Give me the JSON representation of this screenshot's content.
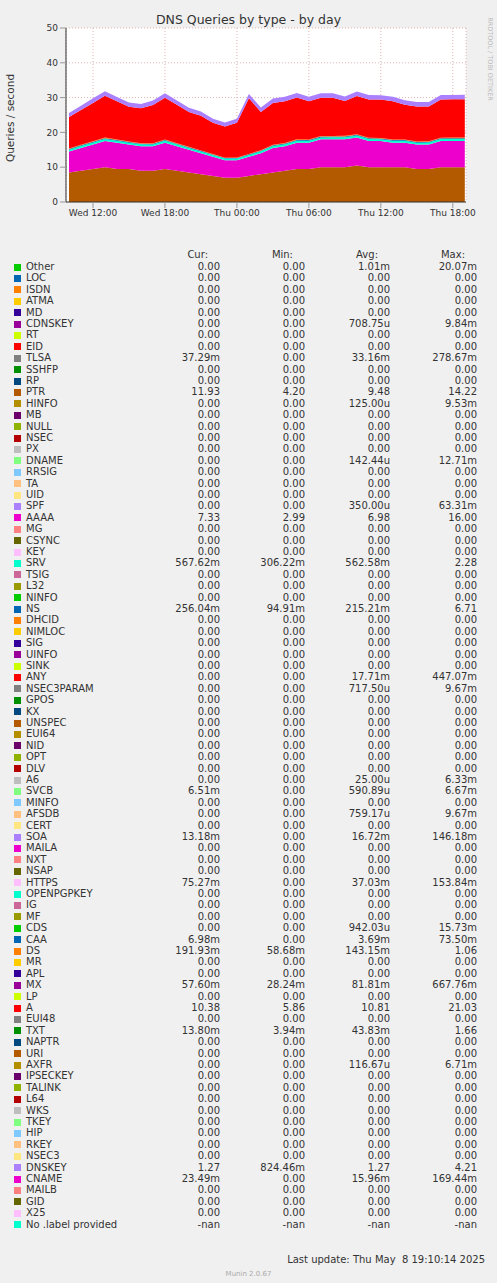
{
  "chart_data": {
    "type": "area",
    "title": "DNS Queries by type - by day",
    "y_label": "Queries / second",
    "stacked": true,
    "grid": true,
    "x": [
      10,
      11,
      12,
      13,
      14,
      15,
      16,
      17,
      18,
      19,
      20,
      21,
      22,
      23,
      24,
      25,
      26,
      27,
      28,
      29,
      30,
      31,
      32,
      33,
      34,
      35,
      36,
      37,
      38,
      39,
      40,
      41,
      42,
      43
    ],
    "xlim": [
      9.75,
      43.1
    ],
    "xticks": [
      {
        "value": 12,
        "label": "Wed 12:00"
      },
      {
        "value": 18,
        "label": "Wed 18:00"
      },
      {
        "value": 24,
        "label": "Thu 00:00"
      },
      {
        "value": 30,
        "label": "Thu 06:00"
      },
      {
        "value": 36,
        "label": "Thu 12:00"
      },
      {
        "value": 42,
        "label": "Thu 18:00"
      }
    ],
    "ylim": [
      0,
      50
    ],
    "yticks": [
      0,
      10,
      20,
      30,
      40,
      50
    ],
    "series": [
      {
        "name": "PTR",
        "color": "#B35A00",
        "values": [
          8.5,
          9,
          9.5,
          10,
          9.5,
          9.5,
          9,
          9,
          9.5,
          9,
          8.5,
          8,
          7.5,
          7,
          7,
          7.5,
          8,
          8.5,
          9,
          9.5,
          9.5,
          10,
          10,
          10,
          10.5,
          10,
          10,
          10,
          10,
          9.5,
          9.5,
          10,
          10,
          10
        ]
      },
      {
        "name": "AAAA",
        "color": "#EE00CC",
        "values": [
          6,
          6.5,
          7,
          7.5,
          7.5,
          7,
          7,
          7,
          7.5,
          7,
          6.5,
          6,
          5.5,
          5,
          5,
          5.5,
          6,
          7,
          7,
          7.5,
          7.5,
          8,
          8,
          8,
          8,
          7.5,
          7.5,
          7,
          7,
          7,
          7,
          7.5,
          7.5,
          7.5
        ]
      },
      {
        "name": "SRV",
        "color": "#00FFCC",
        "values": [
          0.55,
          0.56,
          0.58,
          0.6,
          0.57,
          0.55,
          0.56,
          0.55,
          0.57,
          0.56,
          0.54,
          0.52,
          0.5,
          0.48,
          0.5,
          0.52,
          0.55,
          0.57,
          0.58,
          0.6,
          0.58,
          0.57,
          0.58,
          0.6,
          0.58,
          0.57,
          0.56,
          0.57,
          0.58,
          0.56,
          0.57,
          0.58,
          0.57,
          0.57
        ]
      },
      {
        "name": "NS",
        "color": "#0066B3",
        "values": [
          0.2,
          0.22,
          0.25,
          0.24,
          0.22,
          0.2,
          0.21,
          0.2,
          0.22,
          0.21,
          0.19,
          0.18,
          0.17,
          0.15,
          0.16,
          0.18,
          0.2,
          0.22,
          0.23,
          0.24,
          0.22,
          0.23,
          0.24,
          0.25,
          0.24,
          0.22,
          0.22,
          0.23,
          0.22,
          0.21,
          0.22,
          0.24,
          0.25,
          0.26
        ]
      },
      {
        "name": "DS",
        "color": "#FF8000",
        "values": [
          0.14,
          0.15,
          0.15,
          0.16,
          0.15,
          0.14,
          0.14,
          0.14,
          0.15,
          0.14,
          0.13,
          0.12,
          0.11,
          0.1,
          0.11,
          0.12,
          0.13,
          0.14,
          0.15,
          0.16,
          0.15,
          0.15,
          0.16,
          0.16,
          0.15,
          0.15,
          0.14,
          0.15,
          0.15,
          0.14,
          0.14,
          0.15,
          0.18,
          0.19
        ]
      },
      {
        "name": "A",
        "color": "#FF0000",
        "values": [
          9,
          10,
          11,
          12,
          11,
          10,
          10,
          11,
          12,
          11,
          10,
          10,
          9,
          9,
          10,
          16,
          11,
          12,
          12,
          12,
          11,
          11,
          11,
          10,
          11,
          11,
          11,
          11,
          10,
          10,
          10,
          11,
          11,
          11
        ]
      },
      {
        "name": "DNSKEY",
        "color": "#AA80FF",
        "values": [
          1.2,
          1.25,
          1.3,
          1.3,
          1.25,
          1.2,
          1.25,
          1.3,
          1.3,
          1.25,
          1.2,
          1.2,
          1.15,
          1.1,
          1.15,
          1.2,
          1.25,
          1.3,
          1.3,
          1.3,
          1.3,
          1.3,
          1.3,
          1.3,
          1.3,
          1.3,
          1.25,
          1.3,
          1.3,
          1.3,
          1.3,
          1.3,
          1.27,
          1.27
        ]
      }
    ]
  },
  "table": {
    "header": [
      "Cur:",
      "Min:",
      "Avg:",
      "Max:"
    ],
    "rows": [
      [
        "Other",
        "#00CC00",
        "0.00",
        "0.00",
        "1.01m",
        "20.07m"
      ],
      [
        "LOC",
        "#0066B3",
        "0.00",
        "0.00",
        "0.00",
        "0.00"
      ],
      [
        "ISDN",
        "#FF8000",
        "0.00",
        "0.00",
        "0.00",
        "0.00"
      ],
      [
        "ATMA",
        "#FFCC00",
        "0.00",
        "0.00",
        "0.00",
        "0.00"
      ],
      [
        "MD",
        "#330099",
        "0.00",
        "0.00",
        "0.00",
        "0.00"
      ],
      [
        "CDNSKEY",
        "#990099",
        "0.00",
        "0.00",
        "708.75u",
        "9.84m"
      ],
      [
        "RT",
        "#CCFF00",
        "0.00",
        "0.00",
        "0.00",
        "0.00"
      ],
      [
        "EID",
        "#FF0000",
        "0.00",
        "0.00",
        "0.00",
        "0.00"
      ],
      [
        "TLSA",
        "#808080",
        "37.29m",
        "0.00",
        "33.16m",
        "278.67m"
      ],
      [
        "SSHFP",
        "#008F00",
        "0.00",
        "0.00",
        "0.00",
        "0.00"
      ],
      [
        "RP",
        "#00487D",
        "0.00",
        "0.00",
        "0.00",
        "0.00"
      ],
      [
        "PTR",
        "#B35A00",
        "11.93",
        "4.20",
        "9.48",
        "14.22"
      ],
      [
        "HINFO",
        "#B38F00",
        "0.00",
        "0.00",
        "125.00u",
        "9.53m"
      ],
      [
        "MB",
        "#6B006B",
        "0.00",
        "0.00",
        "0.00",
        "0.00"
      ],
      [
        "NULL",
        "#8FB300",
        "0.00",
        "0.00",
        "0.00",
        "0.00"
      ],
      [
        "NSEC",
        "#B30000",
        "0.00",
        "0.00",
        "0.00",
        "0.00"
      ],
      [
        "PX",
        "#BEBEBE",
        "0.00",
        "0.00",
        "0.00",
        "0.00"
      ],
      [
        "DNAME",
        "#80FF80",
        "0.00",
        "0.00",
        "142.44u",
        "12.71m"
      ],
      [
        "RRSIG",
        "#80C9FF",
        "0.00",
        "0.00",
        "0.00",
        "0.00"
      ],
      [
        "TA",
        "#FFC080",
        "0.00",
        "0.00",
        "0.00",
        "0.00"
      ],
      [
        "UID",
        "#FFE680",
        "0.00",
        "0.00",
        "0.00",
        "0.00"
      ],
      [
        "SPF",
        "#AA80FF",
        "0.00",
        "0.00",
        "350.00u",
        "63.31m"
      ],
      [
        "AAAA",
        "#EE00CC",
        "7.33",
        "2.99",
        "6.98",
        "16.00"
      ],
      [
        "MG",
        "#FF8080",
        "0.00",
        "0.00",
        "0.00",
        "0.00"
      ],
      [
        "CSYNC",
        "#666600",
        "0.00",
        "0.00",
        "0.00",
        "0.00"
      ],
      [
        "KEY",
        "#FFBFFF",
        "0.00",
        "0.00",
        "0.00",
        "0.00"
      ],
      [
        "SRV",
        "#00FFCC",
        "567.62m",
        "306.22m",
        "562.58m",
        "2.28"
      ],
      [
        "TSIG",
        "#CC6699",
        "0.00",
        "0.00",
        "0.00",
        "0.00"
      ],
      [
        "L32",
        "#999900",
        "0.00",
        "0.00",
        "0.00",
        "0.00"
      ],
      [
        "NINFO",
        "#00CC00",
        "0.00",
        "0.00",
        "0.00",
        "0.00"
      ],
      [
        "NS",
        "#0066B3",
        "256.04m",
        "94.91m",
        "215.21m",
        "6.71"
      ],
      [
        "DHCID",
        "#FF8000",
        "0.00",
        "0.00",
        "0.00",
        "0.00"
      ],
      [
        "NIMLOC",
        "#FFCC00",
        "0.00",
        "0.00",
        "0.00",
        "0.00"
      ],
      [
        "SIG",
        "#330099",
        "0.00",
        "0.00",
        "0.00",
        "0.00"
      ],
      [
        "UINFO",
        "#990099",
        "0.00",
        "0.00",
        "0.00",
        "0.00"
      ],
      [
        "SINK",
        "#CCFF00",
        "0.00",
        "0.00",
        "0.00",
        "0.00"
      ],
      [
        "ANY",
        "#FF0000",
        "0.00",
        "0.00",
        "17.71m",
        "447.07m"
      ],
      [
        "NSEC3PARAM",
        "#808080",
        "0.00",
        "0.00",
        "717.50u",
        "9.67m"
      ],
      [
        "GPOS",
        "#008F00",
        "0.00",
        "0.00",
        "0.00",
        "0.00"
      ],
      [
        "KX",
        "#00487D",
        "0.00",
        "0.00",
        "0.00",
        "0.00"
      ],
      [
        "UNSPEC",
        "#B35A00",
        "0.00",
        "0.00",
        "0.00",
        "0.00"
      ],
      [
        "EUI64",
        "#B38F00",
        "0.00",
        "0.00",
        "0.00",
        "0.00"
      ],
      [
        "NID",
        "#6B006B",
        "0.00",
        "0.00",
        "0.00",
        "0.00"
      ],
      [
        "OPT",
        "#8FB300",
        "0.00",
        "0.00",
        "0.00",
        "0.00"
      ],
      [
        "DLV",
        "#B30000",
        "0.00",
        "0.00",
        "0.00",
        "0.00"
      ],
      [
        "A6",
        "#BEBEBE",
        "0.00",
        "0.00",
        "25.00u",
        "6.33m"
      ],
      [
        "SVCB",
        "#80FF80",
        "6.51m",
        "0.00",
        "590.89u",
        "6.67m"
      ],
      [
        "MINFO",
        "#80C9FF",
        "0.00",
        "0.00",
        "0.00",
        "0.00"
      ],
      [
        "AFSDB",
        "#FFC080",
        "0.00",
        "0.00",
        "759.17u",
        "9.67m"
      ],
      [
        "CERT",
        "#FFE680",
        "0.00",
        "0.00",
        "0.00",
        "0.00"
      ],
      [
        "SOA",
        "#AA80FF",
        "13.18m",
        "0.00",
        "16.72m",
        "146.18m"
      ],
      [
        "MAILA",
        "#EE00CC",
        "0.00",
        "0.00",
        "0.00",
        "0.00"
      ],
      [
        "NXT",
        "#FF8080",
        "0.00",
        "0.00",
        "0.00",
        "0.00"
      ],
      [
        "NSAP",
        "#666600",
        "0.00",
        "0.00",
        "0.00",
        "0.00"
      ],
      [
        "HTTPS",
        "#FFBFFF",
        "75.27m",
        "0.00",
        "37.03m",
        "153.84m"
      ],
      [
        "OPENPGPKEY",
        "#00FFCC",
        "0.00",
        "0.00",
        "0.00",
        "0.00"
      ],
      [
        "IG",
        "#CC6699",
        "0.00",
        "0.00",
        "0.00",
        "0.00"
      ],
      [
        "MF",
        "#999900",
        "0.00",
        "0.00",
        "0.00",
        "0.00"
      ],
      [
        "CDS",
        "#00CC00",
        "0.00",
        "0.00",
        "942.03u",
        "15.73m"
      ],
      [
        "CAA",
        "#0066B3",
        "6.98m",
        "0.00",
        "3.69m",
        "73.50m"
      ],
      [
        "DS",
        "#FF8000",
        "191.93m",
        "58.68m",
        "143.15m",
        "1.06"
      ],
      [
        "MR",
        "#FFCC00",
        "0.00",
        "0.00",
        "0.00",
        "0.00"
      ],
      [
        "APL",
        "#330099",
        "0.00",
        "0.00",
        "0.00",
        "0.00"
      ],
      [
        "MX",
        "#990099",
        "57.60m",
        "28.24m",
        "81.81m",
        "667.76m"
      ],
      [
        "LP",
        "#CCFF00",
        "0.00",
        "0.00",
        "0.00",
        "0.00"
      ],
      [
        "A",
        "#FF0000",
        "10.38",
        "5.86",
        "10.81",
        "21.03"
      ],
      [
        "EUI48",
        "#808080",
        "0.00",
        "0.00",
        "0.00",
        "0.00"
      ],
      [
        "TXT",
        "#008F00",
        "13.80m",
        "3.94m",
        "43.83m",
        "1.66"
      ],
      [
        "NAPTR",
        "#00487D",
        "0.00",
        "0.00",
        "0.00",
        "0.00"
      ],
      [
        "URI",
        "#B35A00",
        "0.00",
        "0.00",
        "0.00",
        "0.00"
      ],
      [
        "AXFR",
        "#B38F00",
        "0.00",
        "0.00",
        "116.67u",
        "6.71m"
      ],
      [
        "IPSECKEY",
        "#6B006B",
        "0.00",
        "0.00",
        "0.00",
        "0.00"
      ],
      [
        "TALINK",
        "#8FB300",
        "0.00",
        "0.00",
        "0.00",
        "0.00"
      ],
      [
        "L64",
        "#B30000",
        "0.00",
        "0.00",
        "0.00",
        "0.00"
      ],
      [
        "WKS",
        "#BEBEBE",
        "0.00",
        "0.00",
        "0.00",
        "0.00"
      ],
      [
        "TKEY",
        "#80FF80",
        "0.00",
        "0.00",
        "0.00",
        "0.00"
      ],
      [
        "HIP",
        "#80C9FF",
        "0.00",
        "0.00",
        "0.00",
        "0.00"
      ],
      [
        "RKEY",
        "#FFC080",
        "0.00",
        "0.00",
        "0.00",
        "0.00"
      ],
      [
        "NSEC3",
        "#FFE680",
        "0.00",
        "0.00",
        "0.00",
        "0.00"
      ],
      [
        "DNSKEY",
        "#AA80FF",
        "1.27",
        "824.46m",
        "1.27",
        "4.21"
      ],
      [
        "CNAME",
        "#EE00CC",
        "23.49m",
        "0.00",
        "15.96m",
        "169.44m"
      ],
      [
        "MAILB",
        "#FF8080",
        "0.00",
        "0.00",
        "0.00",
        "0.00"
      ],
      [
        "GID",
        "#666600",
        "0.00",
        "0.00",
        "0.00",
        "0.00"
      ],
      [
        "X25",
        "#FFBFFF",
        "0.00",
        "0.00",
        "0.00",
        "0.00"
      ],
      [
        "No .label provided",
        "#00FFCC",
        "-nan",
        "-nan",
        "-nan",
        "-nan"
      ]
    ]
  },
  "footer": {
    "last_update": "Last update: Thu May  8 19:10:14 2025",
    "version": "Munin 2.0.67",
    "side_text": "RRDTOOL / TOBI OETIKER"
  }
}
